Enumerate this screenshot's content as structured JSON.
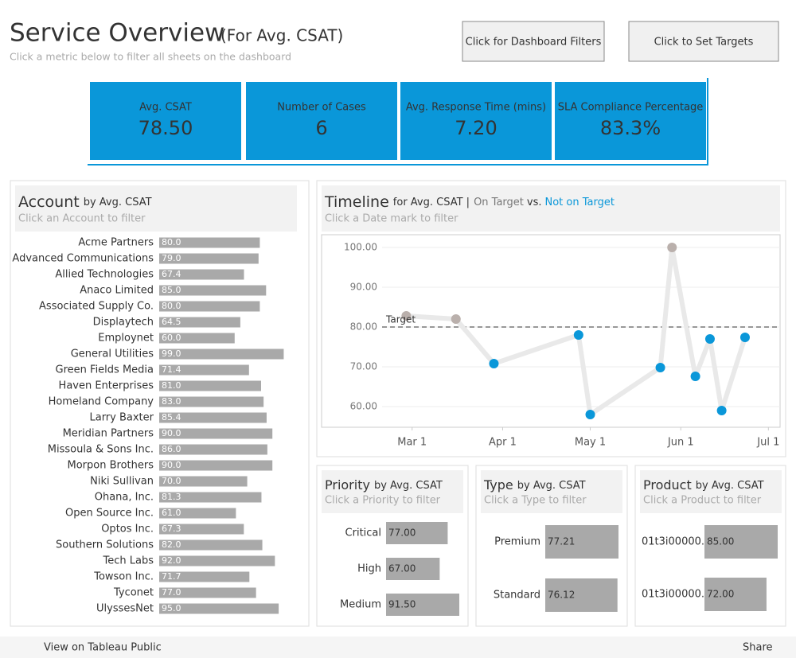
{
  "header": {
    "title": "Service Overview",
    "title_suffix": "(For Avg. CSAT)",
    "subtitle": "Click a metric below to filter all sheets on the dashboard"
  },
  "buttons": [
    "Click for Dashboard Filters",
    "Click to Set Targets"
  ],
  "kpis": [
    {
      "label": "Avg. CSAT",
      "value": "78.50"
    },
    {
      "label": "Number of Cases",
      "value": "6"
    },
    {
      "label": "Avg. Response Time (mins)",
      "value": "7.20"
    },
    {
      "label": "SLA Compliance Percentage",
      "value": "83.3%"
    }
  ],
  "footer": {
    "link": "View on Tableau Public",
    "share": "Share"
  },
  "chart_data": [
    {
      "type": "hbar",
      "title": "Account",
      "title_suffix": "by Avg. CSAT",
      "subtitle": "Click an Account to filter",
      "color": "#a9a9a9",
      "categories": [
        "Acme Partners",
        "Advanced Communications",
        "Allied Technologies",
        "Anaco Limited",
        "Associated Supply Co.",
        "Displaytech",
        "Employnet",
        "General Utilities",
        "Green Fields Media",
        "Haven Enterprises",
        "Homeland Company",
        "Larry Baxter",
        "Meridian Partners",
        "Missoula & Sons Inc.",
        "Morpon Brothers",
        "Niki Sullivan",
        "Ohana, Inc.",
        "Open Source Inc.",
        "Optos Inc.",
        "Southern Solutions",
        "Tech Labs",
        "Towson Inc.",
        "Tyconet",
        "UlyssesNet"
      ],
      "values": [
        80,
        79,
        67.4,
        85,
        80,
        64.5,
        60,
        99,
        71.4,
        81,
        83,
        85.4,
        90,
        86,
        90,
        70,
        81.3,
        61,
        67.3,
        82,
        92,
        71.7,
        77,
        95
      ],
      "value_labels": [
        "80.0",
        "79.0",
        "67.4",
        "85.0",
        "80.0",
        "64.5",
        "60.0",
        "99.0",
        "71.4",
        "81.0",
        "83.0",
        "85.4",
        "90.0",
        "86.0",
        "90.0",
        "70.0",
        "81.3",
        "61.0",
        "67.3",
        "82.0",
        "92.0",
        "71.7",
        "77.0",
        "95.0"
      ]
    },
    {
      "type": "line",
      "title": "Timeline",
      "title_suffix": "for Avg. CSAT |",
      "legend_on": "On Target",
      "legend_vs": "vs.",
      "legend_off": "Not on Target",
      "subtitle": "Click a Date mark to filter",
      "x": [
        "Feb 27",
        "Mar 16",
        "Mar 29",
        "Apr 27",
        "May 1",
        "May 25",
        "May 29",
        "Jun 6",
        "Jun 11",
        "Jun 15",
        "Jun 23"
      ],
      "values": [
        82.8,
        82,
        70.8,
        78,
        58,
        69.8,
        100,
        67.6,
        77,
        59,
        77.4
      ],
      "target": 80,
      "target_label": "Target",
      "on_target_color": "#bab0ac",
      "off_target_color": "#0a97d9",
      "line_color": "#e9e9e9",
      "xlim": [
        "Jan 29",
        "Jul 5"
      ],
      "xticks": [
        "Mar 1",
        "Apr 1",
        "May 1",
        "Jun 1",
        "Jul 1"
      ],
      "ylim": [
        54.8,
        103.2
      ],
      "yticks": [
        {
          "value": 60,
          "label": "60.00"
        },
        {
          "value": 70,
          "label": "70.00"
        },
        {
          "value": 80,
          "label": "80.00"
        },
        {
          "value": 90,
          "label": "90.00"
        },
        {
          "value": 100,
          "label": "100.00"
        }
      ],
      "grid": true
    },
    {
      "type": "hbar",
      "title": "Priority",
      "title_suffix": "by Avg. CSAT",
      "subtitle": "Click a Priority to filter",
      "color": "#a9a9a9",
      "categories": [
        "Critical",
        "High",
        "Medium"
      ],
      "values": [
        77,
        67,
        91.5
      ],
      "value_labels": [
        "77.00",
        "67.00",
        "91.50"
      ]
    },
    {
      "type": "hbar",
      "title": "Type",
      "title_suffix": "by Avg. CSAT",
      "subtitle": "Click a Type to filter",
      "color": "#a9a9a9",
      "categories": [
        "Premium",
        "Standard"
      ],
      "values": [
        77.21,
        76.12
      ],
      "value_labels": [
        "77.21",
        "76.12"
      ]
    },
    {
      "type": "hbar",
      "title": "Product",
      "title_suffix": "by Avg. CSAT",
      "subtitle": "Click a Product to filter",
      "color": "#a9a9a9",
      "categories": [
        "01t3i00000..",
        "01t3i00000.."
      ],
      "values": [
        85,
        72
      ],
      "value_labels": [
        "85.00",
        "72.00"
      ]
    }
  ]
}
